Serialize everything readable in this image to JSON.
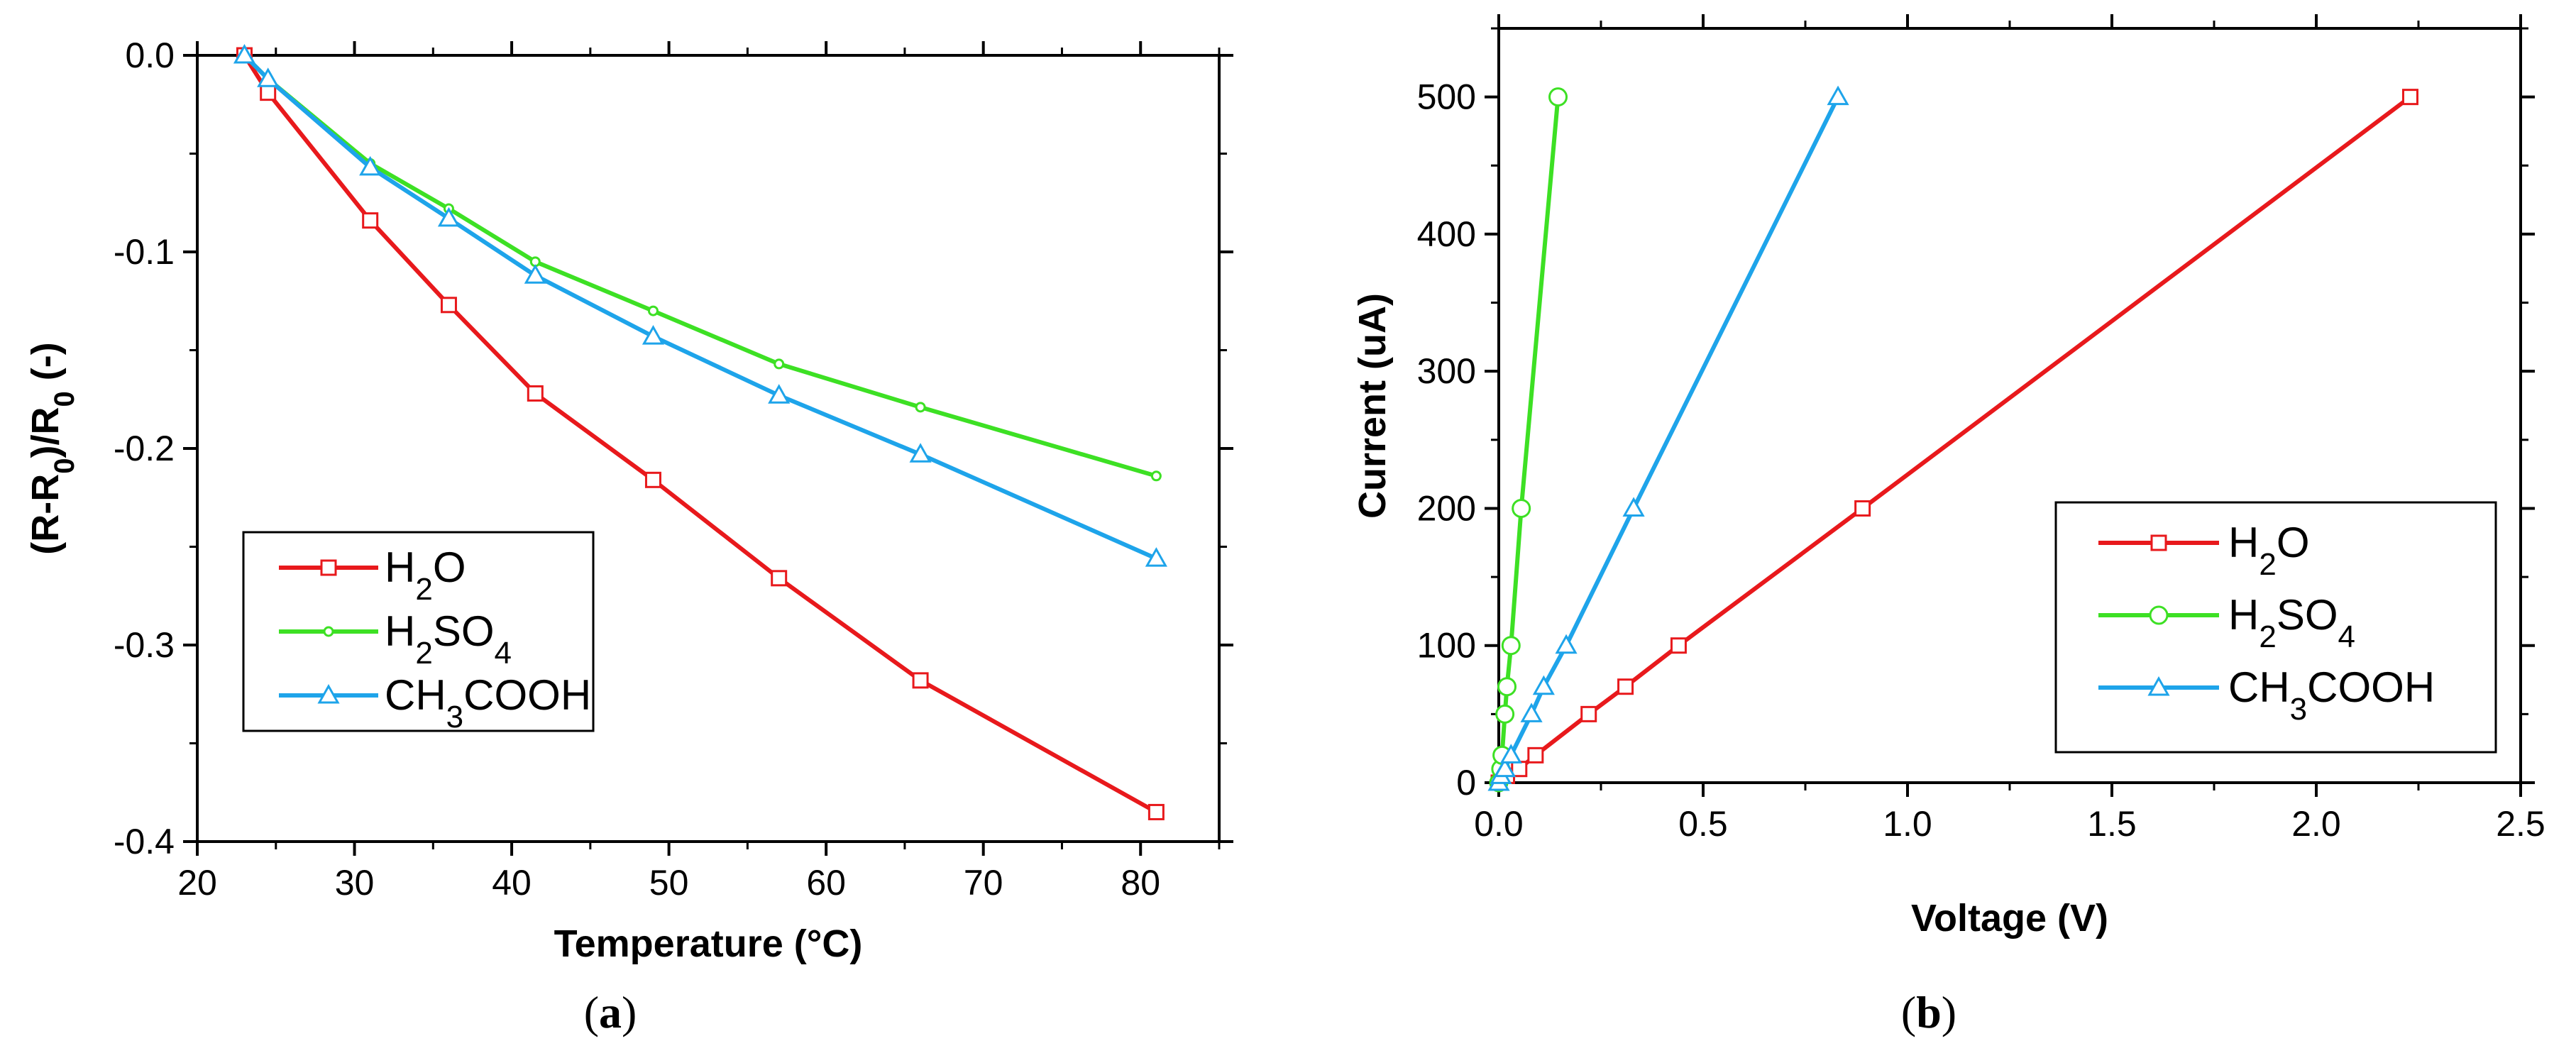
{
  "chart_data": [
    {
      "type": "line",
      "panel_label": "a",
      "xlabel": "Temperature (°C)",
      "ylabel": "(R-R0)/R0 (-)",
      "ylabel_parts": [
        {
          "text": "(R-R",
          "sub": false
        },
        {
          "text": "0",
          "sub": true
        },
        {
          "text": ")/R",
          "sub": false
        },
        {
          "text": "0",
          "sub": true
        },
        {
          "text": " (-)",
          "sub": false
        }
      ],
      "xlim": [
        20,
        85
      ],
      "ylim": [
        -0.4,
        0.0
      ],
      "xticks": [
        20,
        30,
        40,
        50,
        60,
        70,
        80
      ],
      "xtick_labels": [
        "20",
        "30",
        "40",
        "50",
        "60",
        "70",
        "80"
      ],
      "yticks": [
        0.0,
        -0.1,
        -0.2,
        -0.3,
        -0.4
      ],
      "ytick_labels": [
        "0.0",
        "-0.1",
        "-0.2",
        "-0.3",
        "-0.4"
      ],
      "legend_position": "lower-left",
      "series": [
        {
          "name": "H2O",
          "label_parts": [
            {
              "text": "H",
              "sub": false
            },
            {
              "text": "2",
              "sub": true
            },
            {
              "text": "O",
              "sub": false
            }
          ],
          "color": "#e8191c",
          "marker": "square",
          "x": [
            23,
            24.5,
            31,
            36,
            41.5,
            49,
            57,
            66,
            81
          ],
          "y": [
            0.0,
            -0.019,
            -0.084,
            -0.127,
            -0.172,
            -0.216,
            -0.266,
            -0.318,
            -0.385
          ]
        },
        {
          "name": "H2SO4",
          "label_parts": [
            {
              "text": "H",
              "sub": false
            },
            {
              "text": "2",
              "sub": true
            },
            {
              "text": "SO",
              "sub": false
            },
            {
              "text": "4",
              "sub": true
            }
          ],
          "color": "#3de024",
          "marker": "small-circle",
          "x": [
            23,
            24.5,
            31,
            36,
            41.5,
            49,
            57,
            66,
            81
          ],
          "y": [
            0.0,
            -0.012,
            -0.055,
            -0.078,
            -0.105,
            -0.13,
            -0.157,
            -0.179,
            -0.214
          ]
        },
        {
          "name": "CH3COOH",
          "label_parts": [
            {
              "text": "CH",
              "sub": false
            },
            {
              "text": "3",
              "sub": true
            },
            {
              "text": "COOH",
              "sub": false
            }
          ],
          "color": "#1ea4ea",
          "marker": "triangle",
          "x": [
            23,
            24.5,
            31,
            36,
            41.5,
            49,
            57,
            66,
            81
          ],
          "y": [
            0.0,
            -0.012,
            -0.057,
            -0.083,
            -0.112,
            -0.143,
            -0.173,
            -0.203,
            -0.256
          ]
        }
      ]
    },
    {
      "type": "line",
      "panel_label": "b",
      "xlabel": "Voltage (V)",
      "ylabel": "Current (uA)",
      "ylabel_parts": [
        {
          "text": "Current (uA)",
          "sub": false
        }
      ],
      "xlim": [
        0.0,
        2.5
      ],
      "ylim": [
        0,
        550
      ],
      "xticks": [
        0.0,
        0.5,
        1.0,
        1.5,
        2.0,
        2.5
      ],
      "xtick_labels": [
        "0.0",
        "0.5",
        "1.0",
        "1.5",
        "2.0",
        "2.5"
      ],
      "yticks": [
        0,
        100,
        200,
        300,
        400,
        500
      ],
      "ytick_labels": [
        "0",
        "100",
        "200",
        "300",
        "400",
        "500"
      ],
      "legend_position": "lower-right",
      "series": [
        {
          "name": "H2O",
          "label_parts": [
            {
              "text": "H",
              "sub": false
            },
            {
              "text": "2",
              "sub": true
            },
            {
              "text": "O",
              "sub": false
            }
          ],
          "color": "#e8191c",
          "marker": "square",
          "x": [
            0.0,
            0.02,
            0.05,
            0.09,
            0.22,
            0.31,
            0.44,
            0.89,
            2.23
          ],
          "y": [
            0,
            5,
            10,
            20,
            50,
            70,
            100,
            200,
            500
          ]
        },
        {
          "name": "H2SO4",
          "label_parts": [
            {
              "text": "H",
              "sub": false
            },
            {
              "text": "2",
              "sub": true
            },
            {
              "text": "SO",
              "sub": false
            },
            {
              "text": "4",
              "sub": true
            }
          ],
          "color": "#3de024",
          "marker": "circle",
          "x": [
            0.0,
            0.005,
            0.008,
            0.015,
            0.02,
            0.03,
            0.055,
            0.145
          ],
          "y": [
            0,
            10,
            20,
            50,
            70,
            100,
            200,
            500
          ]
        },
        {
          "name": "CH3COOH",
          "label_parts": [
            {
              "text": "CH",
              "sub": false
            },
            {
              "text": "3",
              "sub": true
            },
            {
              "text": "COOH",
              "sub": false
            }
          ],
          "color": "#1ea4ea",
          "marker": "triangle",
          "x": [
            0.0,
            0.005,
            0.015,
            0.03,
            0.08,
            0.11,
            0.165,
            0.33,
            0.83
          ],
          "y": [
            0,
            5,
            10,
            20,
            50,
            70,
            100,
            200,
            500
          ]
        }
      ]
    }
  ]
}
